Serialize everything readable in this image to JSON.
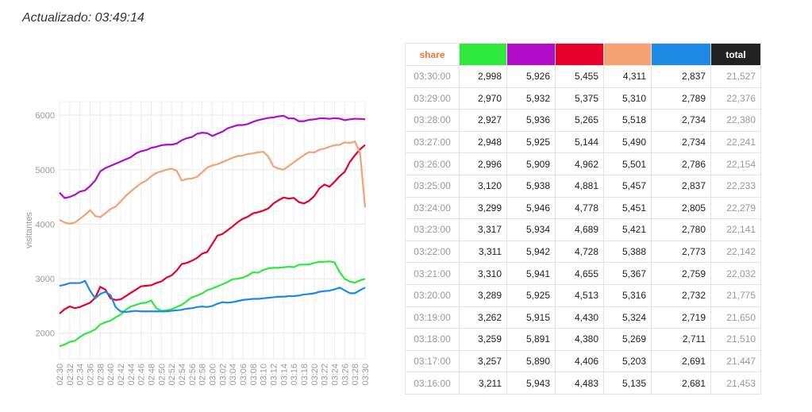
{
  "header": {
    "title": "Actualizado: 03:49:14"
  },
  "chart_data": {
    "type": "line",
    "y_label": "visitantes",
    "categories": [
      "02:30",
      null,
      "02:32",
      null,
      "02:34",
      null,
      "02:36",
      null,
      "02:38",
      null,
      "02:40",
      null,
      "02:42",
      null,
      "02:44",
      null,
      "02:46",
      null,
      "02:48",
      null,
      "02:50",
      null,
      "02:52",
      null,
      "02:54",
      null,
      "02:56",
      null,
      "02:58",
      null,
      "03:00",
      null,
      "03:02",
      null,
      "03:04",
      null,
      "03:06",
      null,
      "03:08",
      null,
      "03:10",
      null,
      "03:12",
      null,
      "03:14",
      null,
      "03:16",
      null,
      "03:18",
      null,
      "03:20",
      null,
      "03:22",
      null,
      "03:24",
      null,
      "03:26",
      null,
      "03:28",
      null,
      "03:30"
    ],
    "ylim": [
      1530,
      6250
    ],
    "yticks": [
      2000,
      3000,
      4000,
      5000,
      6000
    ],
    "grid": true,
    "series": [
      {
        "color": "#2ee83c",
        "values": [
          1760,
          1790,
          1840,
          1860,
          1930,
          1990,
          2020,
          2070,
          2160,
          2200,
          2230,
          2290,
          2340,
          2430,
          2490,
          2520,
          2550,
          2560,
          2600,
          2460,
          2410,
          2420,
          2440,
          2480,
          2520,
          2590,
          2660,
          2690,
          2730,
          2790,
          2820,
          2860,
          2900,
          2940,
          2990,
          3000,
          3020,
          3060,
          3120,
          3110,
          3160,
          3190,
          3200,
          3200,
          3210,
          3220,
          3211,
          3257,
          3259,
          3262,
          3289,
          3310,
          3311,
          3317,
          3299,
          3120,
          2996,
          2948,
          2927,
          2970,
          2998
        ]
      },
      {
        "color": "#b10dc9",
        "values": [
          4580,
          4480,
          4500,
          4540,
          4600,
          4620,
          4700,
          4800,
          4970,
          5030,
          5070,
          5110,
          5150,
          5190,
          5230,
          5300,
          5340,
          5360,
          5400,
          5420,
          5450,
          5460,
          5460,
          5480,
          5540,
          5580,
          5600,
          5660,
          5680,
          5670,
          5620,
          5660,
          5700,
          5760,
          5790,
          5820,
          5820,
          5840,
          5880,
          5910,
          5930,
          5950,
          5960,
          5980,
          5990,
          5940,
          5943,
          5890,
          5891,
          5915,
          5925,
          5941,
          5942,
          5934,
          5946,
          5938,
          5909,
          5925,
          5936,
          5932,
          5926
        ]
      },
      {
        "color": "#e6002b",
        "values": [
          2360,
          2440,
          2490,
          2460,
          2480,
          2520,
          2560,
          2650,
          2850,
          2800,
          2640,
          2610,
          2620,
          2680,
          2740,
          2800,
          2860,
          2870,
          2880,
          2920,
          2950,
          3020,
          3060,
          3150,
          3270,
          3290,
          3330,
          3380,
          3460,
          3490,
          3640,
          3790,
          3820,
          3890,
          3960,
          4040,
          4100,
          4140,
          4200,
          4220,
          4250,
          4290,
          4380,
          4440,
          4490,
          4470,
          4483,
          4406,
          4380,
          4430,
          4513,
          4655,
          4728,
          4689,
          4778,
          4881,
          4962,
          5144,
          5265,
          5375,
          5455
        ]
      },
      {
        "color": "#f5a173",
        "values": [
          4080,
          4030,
          4010,
          4030,
          4100,
          4170,
          4260,
          4150,
          4130,
          4200,
          4280,
          4320,
          4420,
          4520,
          4600,
          4680,
          4750,
          4800,
          4880,
          4940,
          4970,
          5000,
          5020,
          4980,
          4800,
          4830,
          4840,
          4870,
          4950,
          5040,
          5080,
          5100,
          5140,
          5180,
          5220,
          5250,
          5260,
          5290,
          5300,
          5320,
          5330,
          5240,
          5060,
          5020,
          5000,
          5070,
          5135,
          5203,
          5269,
          5324,
          5316,
          5367,
          5388,
          5421,
          5451,
          5457,
          5501,
          5490,
          5518,
          5310,
          4311
        ]
      },
      {
        "color": "#1e88e5",
        "values": [
          2870,
          2890,
          2920,
          2920,
          2920,
          2960,
          2780,
          2640,
          2720,
          2760,
          2700,
          2480,
          2400,
          2390,
          2400,
          2410,
          2400,
          2400,
          2400,
          2400,
          2400,
          2400,
          2410,
          2420,
          2430,
          2450,
          2460,
          2480,
          2490,
          2480,
          2500,
          2540,
          2570,
          2560,
          2570,
          2590,
          2610,
          2620,
          2630,
          2630,
          2640,
          2650,
          2660,
          2670,
          2670,
          2680,
          2681,
          2691,
          2711,
          2719,
          2732,
          2759,
          2773,
          2780,
          2805,
          2837,
          2786,
          2734,
          2734,
          2789,
          2837
        ]
      }
    ]
  },
  "table": {
    "share_label": "share",
    "total_label": "total",
    "rows": [
      [
        "03:30:00",
        "2,998",
        "5,926",
        "5,455",
        "4,311",
        "2,837",
        "21,527"
      ],
      [
        "03:29:00",
        "2,970",
        "5,932",
        "5,375",
        "5,310",
        "2,789",
        "22,376"
      ],
      [
        "03:28:00",
        "2,927",
        "5,936",
        "5,265",
        "5,518",
        "2,734",
        "22,380"
      ],
      [
        "03:27:00",
        "2,948",
        "5,925",
        "5,144",
        "5,490",
        "2,734",
        "22,241"
      ],
      [
        "03:26:00",
        "2,996",
        "5,909",
        "4,962",
        "5,501",
        "2,786",
        "22,154"
      ],
      [
        "03:25:00",
        "3,120",
        "5,938",
        "4,881",
        "5,457",
        "2,837",
        "22,233"
      ],
      [
        "03:24:00",
        "3,299",
        "5,946",
        "4,778",
        "5,451",
        "2,805",
        "22,279"
      ],
      [
        "03:23:00",
        "3,317",
        "5,934",
        "4,689",
        "5,421",
        "2,780",
        "22,141"
      ],
      [
        "03:22:00",
        "3,311",
        "5,942",
        "4,728",
        "5,388",
        "2,773",
        "22,142"
      ],
      [
        "03:21:00",
        "3,310",
        "5,941",
        "4,655",
        "5,367",
        "2,759",
        "22,032"
      ],
      [
        "03:20:00",
        "3,289",
        "5,925",
        "4,513",
        "5,316",
        "2,732",
        "21,775"
      ],
      [
        "03:19:00",
        "3,262",
        "5,915",
        "4,430",
        "5,324",
        "2,719",
        "21,650"
      ],
      [
        "03:18:00",
        "3,259",
        "5,891",
        "4,380",
        "5,269",
        "2,711",
        "21,510"
      ],
      [
        "03:17:00",
        "3,257",
        "5,890",
        "4,406",
        "5,203",
        "2,691",
        "21,447"
      ],
      [
        "03:16:00",
        "3,211",
        "5,943",
        "4,483",
        "5,135",
        "2,681",
        "21,453"
      ]
    ]
  }
}
